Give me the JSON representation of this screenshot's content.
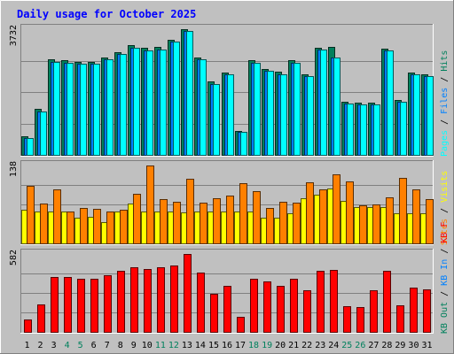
{
  "chart_data": {
    "type": "bar",
    "title": "Daily usage for October 2025",
    "categories": [
      "1",
      "2",
      "3",
      "4",
      "5",
      "6",
      "7",
      "8",
      "9",
      "10",
      "11",
      "12",
      "13",
      "14",
      "15",
      "16",
      "17",
      "18",
      "19",
      "20",
      "21",
      "22",
      "23",
      "24",
      "25",
      "26",
      "27",
      "28",
      "29",
      "30",
      "31"
    ],
    "weekend_days": [
      "4",
      "5",
      "11",
      "12",
      "18",
      "19",
      "25",
      "26"
    ],
    "panels": [
      {
        "name": "hits-files-pages",
        "max_label": "3732",
        "ylim": [
          0,
          3732
        ],
        "series": [
          {
            "name": "Hits",
            "color": "#00805c",
            "values": [
              540,
              1360,
              2830,
              2800,
              2760,
              2760,
              2900,
              3060,
              3250,
              3170,
              3200,
              3420,
              3732,
              2900,
              2170,
              2440,
              720,
              2800,
              2550,
              2460,
              2800,
              2400,
              3180,
              3200,
              1590,
              1550,
              1550,
              3160,
              1640,
              2440,
              2390
            ]
          },
          {
            "name": "Files",
            "color": "#0080ff",
            "values": [
              500,
              1300,
              2760,
              2730,
              2700,
              2700,
              2840,
              3000,
              3180,
              3100,
              3140,
              3360,
              3680,
              2840,
              2110,
              2380,
              680,
              2740,
              2490,
              2400,
              2740,
              2340,
              3120,
              2880,
              1530,
              1490,
              1490,
              3100,
              1580,
              2380,
              2340
            ]
          },
          {
            "name": "Pages",
            "color": "#00ffff",
            "values": [
              500,
              1300,
              2760,
              2730,
              2700,
              2700,
              2840,
              3000,
              3180,
              3100,
              3140,
              3360,
              3680,
              2840,
              2110,
              2380,
              680,
              2740,
              2490,
              2400,
              2740,
              2340,
              3120,
              2880,
              1530,
              1490,
              1490,
              3100,
              1580,
              2380,
              2340
            ]
          }
        ]
      },
      {
        "name": "visits-sites",
        "max_label": "138",
        "ylim": [
          0,
          138
        ],
        "series": [
          {
            "name": "Visits",
            "color": "#ffff00",
            "values": [
              60,
              56,
              57,
              57,
              46,
              47,
              38,
              56,
              71,
              56,
              56,
              56,
              55,
              56,
              56,
              56,
              56,
              56,
              46,
              46,
              53,
              80,
              86,
              98,
              76,
              64,
              64,
              65,
              54,
              54,
              54
            ]
          },
          {
            "name": "Sites",
            "color": "#ff8000",
            "values": [
              102,
              71,
              96,
              57,
              62,
              61,
              56,
              60,
              88,
              138,
              79,
              74,
              115,
              72,
              80,
              84,
              106,
              93,
              62,
              73,
              72,
              108,
              95,
              122,
              110,
              67,
              69,
              82,
              116,
              96,
              79
            ]
          }
        ]
      },
      {
        "name": "kbytes",
        "max_label": "582",
        "ylim": [
          0,
          582
        ],
        "series": [
          {
            "name": "KB F",
            "color": "#ff0000",
            "values": [
              95,
              205,
              410,
              410,
              400,
              400,
              420,
              455,
              480,
              470,
              480,
              495,
              582,
              445,
              285,
              345,
              110,
              400,
              375,
              345,
              395,
              310,
              455,
              460,
              190,
              185,
              310,
              455,
              200,
              330,
              320
            ]
          },
          {
            "name": "KB In",
            "color": "#0080ff",
            "values": []
          },
          {
            "name": "KB Out",
            "color": "#00805c",
            "values": []
          }
        ]
      }
    ]
  }
}
